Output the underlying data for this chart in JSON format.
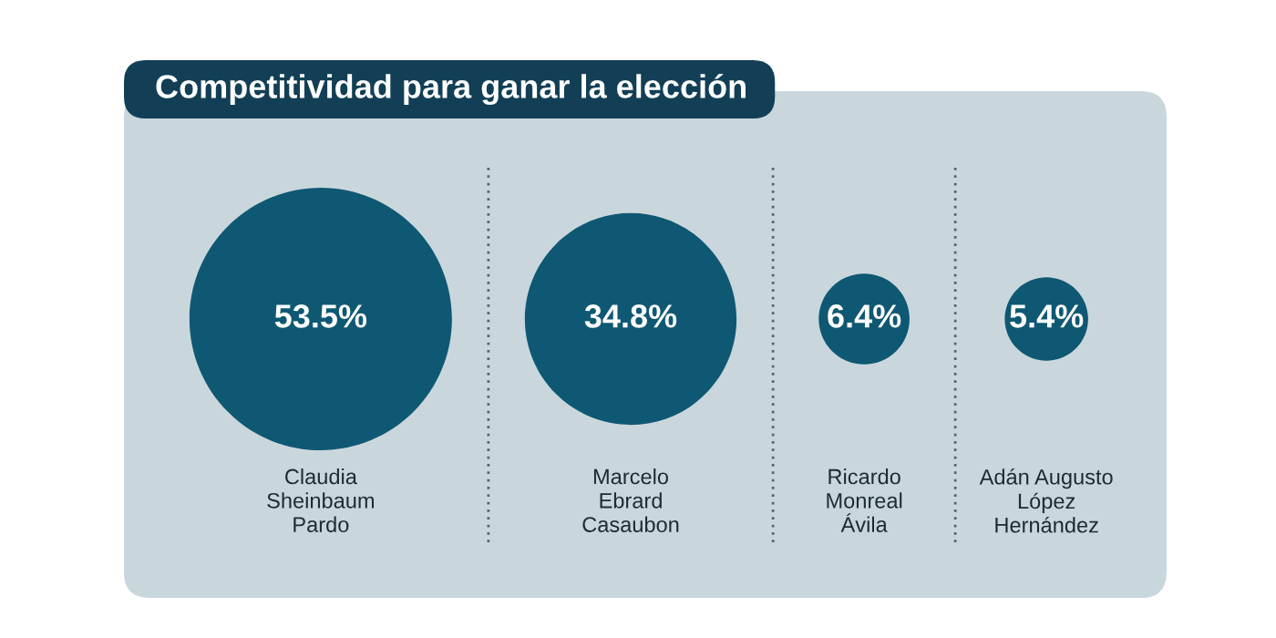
{
  "chart_data": {
    "type": "other",
    "title": "Competitividad para ganar la elección",
    "categories": [
      "Claudia\nSheinbaum\nPardo",
      "Marcelo\nEbrard\nCasaubon",
      "Ricardo\nMonreal\nÁvila",
      "Adán Augusto\nLópez\nHernández"
    ],
    "values": [
      53.5,
      34.8,
      6.4,
      5.4
    ],
    "value_labels": [
      "53.5%",
      "34.8%",
      "6.4%",
      "5.4%"
    ],
    "color": "#0f5873"
  }
}
